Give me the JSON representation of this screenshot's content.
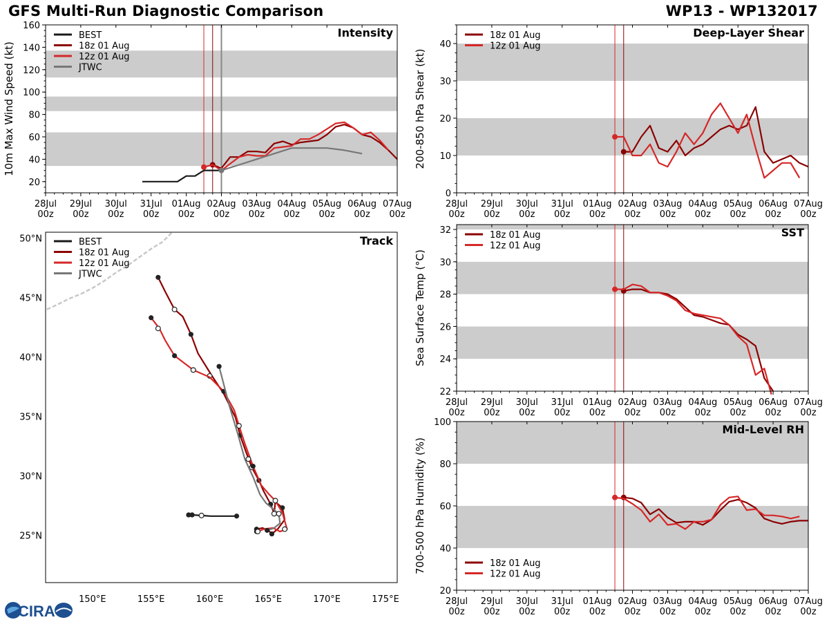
{
  "header": {
    "title": "GFS Multi-Run Diagnostic Comparison",
    "storm_id": "WP13 - WP132017"
  },
  "logo": {
    "text": "CIRA"
  },
  "colors": {
    "best": "#1a1a1a",
    "run18z": "#8b0000",
    "run12z": "#d62728",
    "jtwc": "#777777",
    "band": "#cccccc",
    "coast": "#c8c8c8"
  },
  "time_axis": {
    "ticks": [
      "28Jul\n00z",
      "29Jul\n00z",
      "30Jul\n00z",
      "31Jul\n00z",
      "01Aug\n00z",
      "02Aug\n00z",
      "03Aug\n00z",
      "04Aug\n00z",
      "05Aug\n00z",
      "06Aug\n00z",
      "07Aug\n00z"
    ],
    "verticals_days": [
      4.5,
      4.75
    ]
  },
  "chart_data": [
    {
      "id": "intensity",
      "type": "line",
      "title": "Intensity",
      "ylabel": "10m Max Wind Speed (kt)",
      "ylim": [
        10,
        160
      ],
      "yticks": [
        20,
        40,
        60,
        80,
        100,
        120,
        140,
        160
      ],
      "bands": [
        [
          34,
          64
        ],
        [
          83,
          96
        ],
        [
          113,
          137
        ]
      ],
      "legend": [
        "BEST",
        "18z 01 Aug",
        "12z 01 Aug",
        "JTWC"
      ],
      "verticals_days": [
        4.5,
        4.75,
        5.0
      ],
      "series": [
        {
          "name": "BEST",
          "color_key": "best",
          "x": [
            2.75,
            3.0,
            3.25,
            3.5,
            3.75,
            4.0,
            4.25,
            4.5,
            4.75,
            5.0
          ],
          "y": [
            20,
            20,
            20,
            20,
            20,
            25,
            25,
            30,
            30,
            30
          ],
          "marker": []
        },
        {
          "name": "18z 01 Aug",
          "color_key": "run18z",
          "x": [
            4.75,
            5.0,
            5.25,
            5.5,
            5.75,
            6.0,
            6.25,
            6.5,
            6.75,
            7.0,
            7.25,
            7.5,
            7.75,
            8.0,
            8.25,
            8.5,
            8.75,
            9.0,
            9.25,
            9.5,
            9.75,
            10.0
          ],
          "y": [
            35,
            32,
            42,
            42,
            47,
            47,
            46,
            54,
            56,
            53,
            55,
            56,
            57,
            62,
            69,
            71,
            68,
            62,
            60,
            55,
            48,
            40
          ],
          "marker": [
            4.75
          ]
        },
        {
          "name": "12z 01 Aug",
          "color_key": "run12z",
          "x": [
            4.5,
            4.75,
            5.0,
            5.25,
            5.5,
            5.75,
            6.0,
            6.25,
            6.5,
            6.75,
            7.0,
            7.25,
            7.5,
            7.75,
            8.0,
            8.25,
            8.5,
            8.75,
            9.0,
            9.25,
            9.5,
            9.75
          ],
          "y": [
            33,
            35,
            30,
            36,
            42,
            44,
            43,
            43,
            50,
            51,
            52,
            58,
            58,
            62,
            67,
            72,
            73,
            68,
            62,
            64,
            57,
            48
          ],
          "marker": [
            4.5
          ]
        },
        {
          "name": "JTWC",
          "color_key": "jtwc",
          "x": [
            5.0,
            5.5,
            6.0,
            6.5,
            7.0,
            7.5,
            8.0,
            8.5,
            9.0
          ],
          "y": [
            30,
            35,
            40,
            45,
            50,
            50,
            50,
            48,
            45
          ],
          "marker": [
            5.0
          ]
        }
      ]
    },
    {
      "id": "shear",
      "type": "line",
      "title": "Deep-Layer Shear",
      "ylabel": "200-850 hPa Shear (kt)",
      "ylim": [
        0,
        45
      ],
      "yticks": [
        0,
        10,
        20,
        30,
        40
      ],
      "bands": [
        [
          10,
          20
        ],
        [
          30,
          40
        ]
      ],
      "legend": [
        "18z 01 Aug",
        "12z 01 Aug"
      ],
      "series": [
        {
          "name": "18z 01 Aug",
          "color_key": "run18z",
          "x": [
            4.75,
            5.0,
            5.25,
            5.5,
            5.75,
            6.0,
            6.25,
            6.5,
            6.75,
            7.0,
            7.25,
            7.5,
            7.75,
            8.0,
            8.25,
            8.5,
            8.75,
            9.0,
            9.25,
            9.5,
            9.75,
            10.0
          ],
          "y": [
            11,
            11,
            15,
            18,
            12,
            11,
            14,
            10,
            12,
            13,
            15,
            17,
            18,
            17,
            18,
            23,
            11,
            8,
            9,
            10,
            8,
            7
          ],
          "marker": [
            4.75
          ]
        },
        {
          "name": "12z 01 Aug",
          "color_key": "run12z",
          "x": [
            4.5,
            4.75,
            5.0,
            5.25,
            5.5,
            5.75,
            6.0,
            6.25,
            6.5,
            6.75,
            7.0,
            7.25,
            7.5,
            7.75,
            8.0,
            8.25,
            8.5,
            8.75,
            9.0,
            9.25,
            9.5,
            9.75
          ],
          "y": [
            15,
            15,
            10,
            10,
            13,
            8,
            7,
            11,
            16,
            13,
            16,
            21,
            24,
            20,
            16,
            21,
            12,
            4,
            6,
            8,
            8,
            4
          ],
          "marker": [
            4.5
          ]
        }
      ]
    },
    {
      "id": "sst",
      "type": "line",
      "title": "SST",
      "ylabel": "Sea Surface Temp (°C)",
      "ylim": [
        22,
        32.3
      ],
      "yticks": [
        22,
        24,
        26,
        28,
        30,
        32
      ],
      "bands": [
        [
          24,
          26
        ],
        [
          28,
          30
        ],
        [
          32,
          32.3
        ]
      ],
      "legend": [
        "18z 01 Aug",
        "12z 01 Aug"
      ],
      "series": [
        {
          "name": "18z 01 Aug",
          "color_key": "run18z",
          "x": [
            4.75,
            5.0,
            5.25,
            5.5,
            5.75,
            6.0,
            6.25,
            6.5,
            6.75,
            7.0,
            7.25,
            7.5,
            7.75,
            8.0,
            8.25,
            8.5,
            8.75,
            9.0
          ],
          "y": [
            28.2,
            28.3,
            28.3,
            28.1,
            28.1,
            28.0,
            27.7,
            27.2,
            26.7,
            26.6,
            26.4,
            26.2,
            26.1,
            25.5,
            25.2,
            24.8,
            22.8,
            22.0
          ],
          "marker": [
            4.75
          ]
        },
        {
          "name": "12z 01 Aug",
          "color_key": "run12z",
          "x": [
            4.5,
            4.75,
            5.0,
            5.25,
            5.5,
            5.75,
            6.0,
            6.25,
            6.5,
            6.75,
            7.0,
            7.25,
            7.5,
            7.75,
            8.0,
            8.25,
            8.5,
            8.75,
            8.95
          ],
          "y": [
            28.3,
            28.3,
            28.6,
            28.5,
            28.1,
            28.1,
            27.9,
            27.6,
            27.0,
            26.8,
            26.7,
            26.6,
            26.5,
            26.1,
            25.4,
            24.9,
            23.0,
            23.4,
            21.8
          ],
          "marker": [
            4.5
          ]
        }
      ]
    },
    {
      "id": "rh",
      "type": "line",
      "title": "Mid-Level RH",
      "ylabel": "700-500 hPa Humidity (%)",
      "ylim": [
        20,
        100
      ],
      "yticks": [
        20,
        40,
        60,
        80,
        100
      ],
      "bands": [
        [
          40,
          60
        ],
        [
          80,
          100
        ]
      ],
      "legend": [
        "18z 01 Aug",
        "12z 01 Aug"
      ],
      "series": [
        {
          "name": "18z 01 Aug",
          "color_key": "run18z",
          "x": [
            4.75,
            5.0,
            5.25,
            5.5,
            5.75,
            6.0,
            6.25,
            6.5,
            6.75,
            7.0,
            7.25,
            7.5,
            7.75,
            8.0,
            8.25,
            8.5,
            8.75,
            9.0,
            9.25,
            9.5,
            9.75,
            10.0
          ],
          "y": [
            64,
            63.5,
            61.5,
            56,
            58.5,
            54.5,
            52,
            52.5,
            52.5,
            51,
            53.5,
            58,
            62,
            63,
            61.5,
            59,
            54,
            52.5,
            51.5,
            52.5,
            53,
            53
          ],
          "marker": [
            4.75
          ]
        },
        {
          "name": "12z 01 Aug",
          "color_key": "run12z",
          "x": [
            4.5,
            4.75,
            5.0,
            5.25,
            5.5,
            5.75,
            6.0,
            6.25,
            6.5,
            6.75,
            7.0,
            7.25,
            7.5,
            7.75,
            8.0,
            8.25,
            8.5,
            8.75,
            9.0,
            9.25,
            9.5,
            9.75
          ],
          "y": [
            64,
            63.5,
            61,
            58,
            52.5,
            56,
            51,
            51.5,
            49,
            52.5,
            52.5,
            53.5,
            60.5,
            64,
            64.5,
            58,
            58.5,
            55.5,
            55.5,
            55,
            54,
            55
          ],
          "marker": [
            4.5
          ]
        }
      ]
    },
    {
      "id": "track",
      "type": "scatter",
      "title": "Track",
      "xlim": [
        146,
        176
      ],
      "ylim": [
        21,
        50.5
      ],
      "xticks": [
        150,
        155,
        160,
        165,
        170,
        175
      ],
      "xtick_labels": [
        "150°E",
        "155°E",
        "160°E",
        "165°E",
        "170°E",
        "175°E"
      ],
      "yticks": [
        25,
        30,
        35,
        40,
        45,
        50
      ],
      "ytick_labels": [
        "25°N",
        "30°N",
        "35°N",
        "40°N",
        "45°N",
        "50°N"
      ],
      "legend": [
        "BEST",
        "18z 01 Aug",
        "12z 01 Aug",
        "JTWC"
      ],
      "coast": [
        [
          [
            146.1,
            44.0
          ],
          [
            147.0,
            44.4
          ],
          [
            148.0,
            44.9
          ],
          [
            149.0,
            45.3
          ],
          [
            150.0,
            45.8
          ],
          [
            151.0,
            46.4
          ],
          [
            152.0,
            47.1
          ],
          [
            153.0,
            47.7
          ],
          [
            154.0,
            48.4
          ],
          [
            155.0,
            49.1
          ],
          [
            156.0,
            49.7
          ],
          [
            156.8,
            50.5
          ]
        ]
      ],
      "series": [
        {
          "name": "BEST",
          "color_key": "best",
          "lon": [
            162.3,
            161.2,
            160.1,
            159.3,
            158.5,
            158.2,
            158.0
          ],
          "lat": [
            26.6,
            26.6,
            26.6,
            26.65,
            26.7,
            26.7,
            26.7
          ],
          "filled": [
            162.3,
            158.5,
            158.2
          ],
          "open": [
            159.3
          ]
        },
        {
          "name": "18z 01 Aug",
          "color_key": "run18z",
          "lon": [
            164.0,
            164.5,
            165.0,
            165.3,
            165.8,
            166.4,
            166.2,
            165.6,
            165.5,
            165.2,
            164.6,
            164.2,
            163.6,
            163.1,
            162.6,
            162.2,
            161.2,
            160.2,
            159.0,
            158.4,
            157.7,
            157.0,
            156.2,
            155.6
          ],
          "lat": [
            25.5,
            25.6,
            25.4,
            25.1,
            25.5,
            26.3,
            27.3,
            27.8,
            26.8,
            27.6,
            28.7,
            29.6,
            30.7,
            32.0,
            33.4,
            34.9,
            36.9,
            38.4,
            40.3,
            41.9,
            43.4,
            44.0,
            45.5,
            46.7
          ],
          "filled": [
            164.0,
            165.3,
            166.2,
            165.2,
            164.2,
            162.6,
            158.4,
            155.6
          ],
          "open": [
            165.5,
            163.6,
            160.0,
            157.0
          ]
        },
        {
          "name": "12z 01 Aug",
          "color_key": "run12z",
          "lon": [
            164.1,
            164.6,
            165.4,
            166.0,
            166.6,
            166.2,
            165.6,
            165.0,
            164.4,
            163.7,
            163.0,
            162.5,
            162.1,
            161.2,
            160.0,
            158.6,
            157.0,
            156.2,
            155.7,
            155.0
          ],
          "lat": [
            25.3,
            25.5,
            25.6,
            25.3,
            25.5,
            26.9,
            27.9,
            28.5,
            29.2,
            30.8,
            32.7,
            34.2,
            35.5,
            37.1,
            38.3,
            38.9,
            40.1,
            41.4,
            42.4,
            43.3
          ],
          "filled": [
            164.0,
            163.7,
            161.2,
            157.0,
            155.0
          ],
          "open": [
            164.1,
            165.6,
            166.4,
            162.5,
            158.6,
            155.6
          ]
        },
        {
          "name": "JTWC",
          "color_key": "jtwc",
          "lon": [
            164.9,
            165.5,
            166.0,
            165.9,
            164.8,
            164.3,
            163.7,
            163.0,
            162.4,
            161.7,
            160.8
          ],
          "lat": [
            25.4,
            25.6,
            26.0,
            26.8,
            27.7,
            28.4,
            29.9,
            31.4,
            33.5,
            35.8,
            39.2
          ],
          "filled": [
            164.9,
            160.8
          ],
          "open": [
            165.9,
            163.3
          ]
        }
      ]
    }
  ]
}
